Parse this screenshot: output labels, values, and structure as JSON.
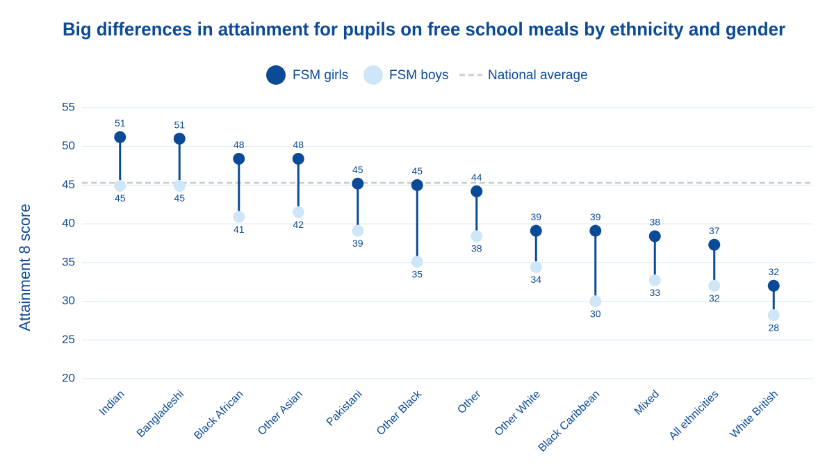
{
  "chart_data": {
    "type": "dumbbell",
    "title": "Big differences in attainment for pupils on free school meals by ethnicity and gender",
    "y_label": "Attainment 8 score",
    "categories": [
      "Indian",
      "Bangladeshi",
      "Black African",
      "Other Asian",
      "Pakistani",
      "Other Black",
      "Other",
      "Other White",
      "Black Caribbean",
      "Mixed",
      "All ethnicities",
      "White British"
    ],
    "series": [
      {
        "name": "FSM girls",
        "color": "#0b4a96",
        "values": [
          51.2,
          51.0,
          48.4,
          48.4,
          45.2,
          45.0,
          44.2,
          39.1,
          39.1,
          38.4,
          37.3,
          32.0
        ],
        "value_labels": [
          "51",
          "51",
          "48",
          "48",
          "45",
          "45",
          "44",
          "39",
          "39",
          "38",
          "37",
          "32"
        ]
      },
      {
        "name": "FSM boys",
        "color": "#cfe6f8",
        "values": [
          44.9,
          44.9,
          40.9,
          41.5,
          39.1,
          35.1,
          38.4,
          34.4,
          30.0,
          32.7,
          32.0,
          28.2
        ],
        "value_labels": [
          "45",
          "45",
          "41",
          "42",
          "39",
          "35",
          "38",
          "34",
          "30",
          "33",
          "32",
          "28"
        ]
      }
    ],
    "reference_line": {
      "label": "National average",
      "value": 45.3,
      "color": "#c8c8c8"
    },
    "ylim": [
      20,
      55
    ],
    "yticks": [
      20,
      25,
      30,
      35,
      40,
      45,
      50,
      55
    ],
    "grid": true
  }
}
